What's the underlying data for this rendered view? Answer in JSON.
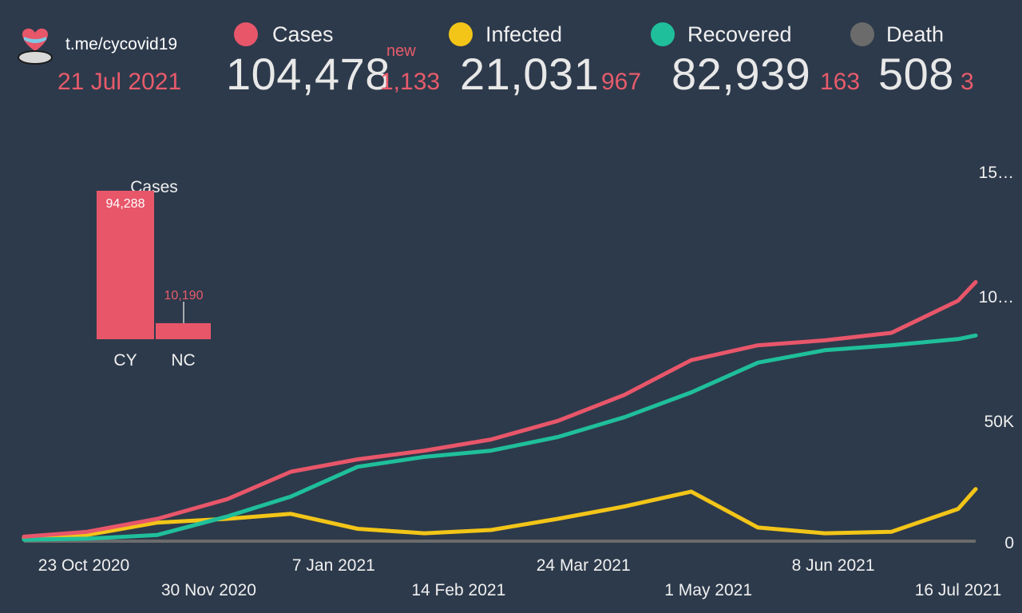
{
  "header": {
    "channel": "t.me/cycovid19",
    "date": "21 Jul 2021",
    "new_label": "new"
  },
  "stats": [
    {
      "label": "Cases",
      "value": "104,478",
      "delta": "1,133",
      "color": "#e8566a"
    },
    {
      "label": "Infected",
      "value": "21,031",
      "delta": "967",
      "color": "#f2c518"
    },
    {
      "label": "Recovered",
      "value": "82,939",
      "delta": "163",
      "color": "#1fbf9b"
    },
    {
      "label": "Death",
      "value": "508",
      "delta": "3",
      "color": "#6b6b6b"
    }
  ],
  "colors": {
    "background": "#2d3a4b",
    "cases": "#e8566a",
    "infected": "#f2c518",
    "recovered": "#1fbf9b",
    "death": "#6b6b6b",
    "accent_text": "#e85b6b"
  },
  "chart_data": [
    {
      "type": "bar",
      "title": "Cases",
      "categories": [
        "CY",
        "NC"
      ],
      "values": [
        94288,
        10190
      ],
      "value_labels": [
        "94,288",
        "10,190"
      ],
      "ylim": [
        0,
        94288
      ]
    },
    {
      "type": "line",
      "x_ticks": [
        "23 Oct 2020",
        "30 Nov 2020",
        "7 Jan 2021",
        "14 Feb 2021",
        "24 Mar 2021",
        "1 May 2021",
        "8 Jun 2021",
        "16 Jul 2021"
      ],
      "y_ticks": [
        "0",
        "50K",
        "10…",
        "15…"
      ],
      "ylim": [
        0,
        150000
      ],
      "grid": false,
      "x": [
        "2020-10-23",
        "2020-11-10",
        "2020-11-30",
        "2020-12-20",
        "2021-01-07",
        "2021-01-26",
        "2021-02-14",
        "2021-03-05",
        "2021-03-24",
        "2021-04-12",
        "2021-05-01",
        "2021-05-20",
        "2021-06-08",
        "2021-06-27",
        "2021-07-16",
        "2021-07-21"
      ],
      "series": [
        {
          "values": [
            1800,
            3800,
            9000,
            17000,
            28000,
            33000,
            36500,
            41000,
            48500,
            59000,
            73000,
            79000,
            81000,
            84000,
            97000,
            104478
          ]
        },
        {
          "values": [
            1200,
            2500,
            7500,
            9000,
            11000,
            5000,
            3200,
            4500,
            9000,
            14000,
            20000,
            5500,
            3200,
            3800,
            13000,
            21031
          ]
        },
        {
          "values": [
            600,
            1000,
            2500,
            10000,
            18000,
            30000,
            34000,
            36500,
            42000,
            50000,
            60000,
            72000,
            77000,
            79000,
            81500,
            82939
          ]
        }
      ]
    }
  ]
}
